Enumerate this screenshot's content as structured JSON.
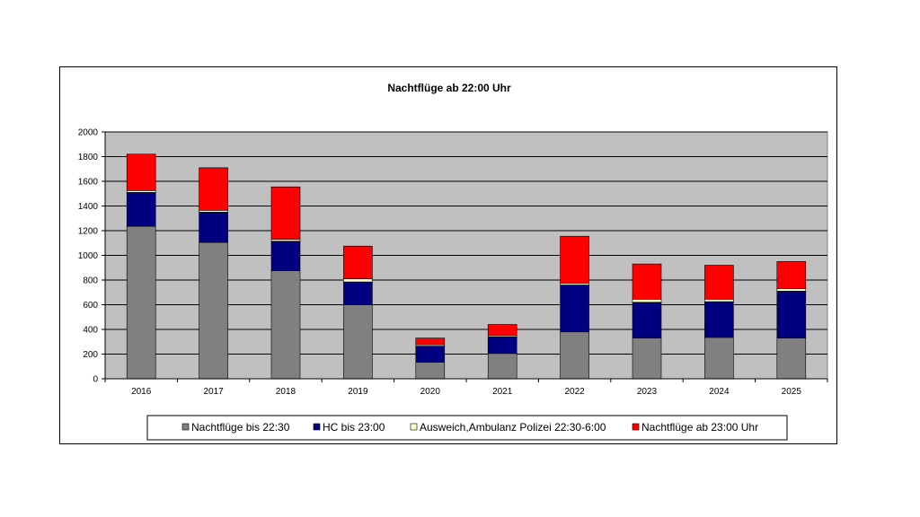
{
  "chart_data": {
    "type": "bar",
    "stacked": true,
    "title": "Nachtflüge ab 22:00 Uhr",
    "categories": [
      "2016",
      "2017",
      "2018",
      "2019",
      "2020",
      "2021",
      "2022",
      "2023",
      "2024",
      "2025"
    ],
    "series": [
      {
        "name": "Nachtflüge bis 22:30",
        "color": "#808080",
        "values": [
          1235,
          1105,
          875,
          600,
          135,
          205,
          380,
          330,
          335,
          330
        ]
      },
      {
        "name": "HC bis 23:00",
        "color": "#000080",
        "values": [
          275,
          245,
          240,
          185,
          130,
          135,
          380,
          290,
          290,
          380
        ]
      },
      {
        "name": "Ausweich,Ambulanz Polizei 22:30-6:00",
        "color": "#ffffcc",
        "values": [
          15,
          15,
          15,
          25,
          10,
          10,
          15,
          25,
          20,
          20
        ]
      },
      {
        "name": "Nachtflüge ab 23:00 Uhr",
        "color": "#ff0000",
        "values": [
          295,
          345,
          425,
          265,
          55,
          90,
          380,
          285,
          275,
          220
        ]
      }
    ],
    "ylim": [
      0,
      2000
    ],
    "yticks": [
      0,
      200,
      400,
      600,
      800,
      1000,
      1200,
      1400,
      1600,
      1800,
      2000
    ],
    "xlabel": "",
    "ylabel": "",
    "grid": true,
    "plot_background": "#c0c0c0",
    "legend_position": "bottom"
  }
}
